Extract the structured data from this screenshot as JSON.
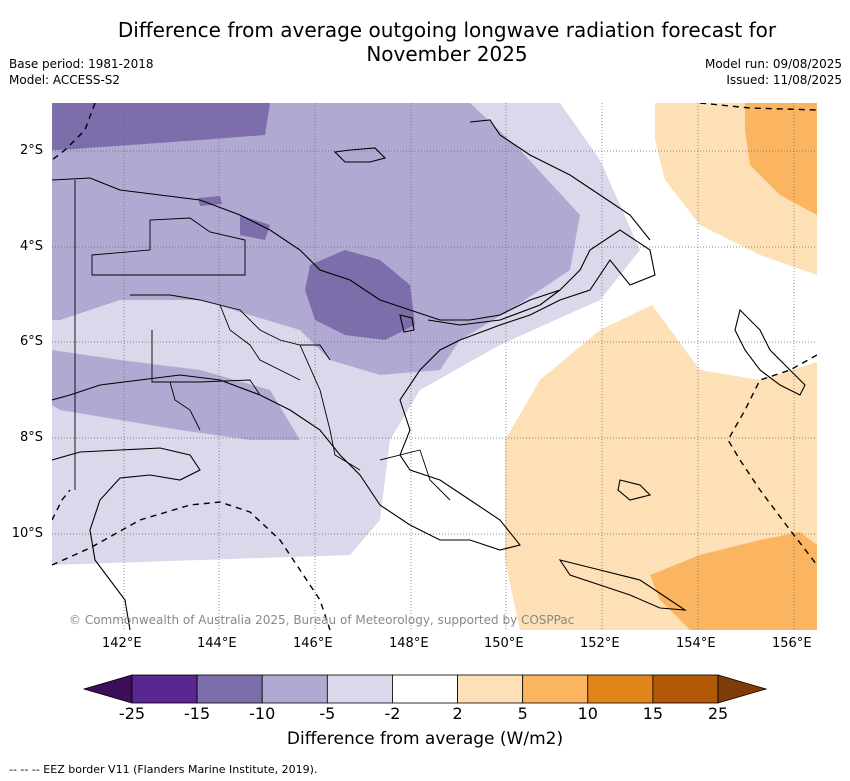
{
  "title": {
    "line1": "Difference from average outgoing longwave radiation forecast for",
    "line2": "November 2025"
  },
  "meta": {
    "base_period": "Base period: 1981-2018",
    "model": "Model: ACCESS-S2",
    "model_run": "Model run: 09/08/2025",
    "issued": "Issued: 11/08/2025"
  },
  "map": {
    "lat_labels": [
      "2°S",
      "4°S",
      "6°S",
      "8°S",
      "10°S"
    ],
    "lon_labels": [
      "142°E",
      "144°E",
      "146°E",
      "148°E",
      "150°E",
      "152°E",
      "154°E",
      "156°E"
    ],
    "copyright": "© Commonwealth of Australia 2025, Bureau of Meteorology, supported by COSPPac"
  },
  "colorbar": {
    "ticks": [
      "-25",
      "-15",
      "-10",
      "-5",
      "-2",
      "2",
      "5",
      "10",
      "15",
      "25"
    ],
    "colors": [
      "#3b0f5a",
      "#5a2690",
      "#7d6eab",
      "#b0a9d2",
      "#d9d9eb",
      "#ffffff",
      "#fde0b5",
      "#fbb561",
      "#e1841a",
      "#b35806",
      "#7f3b08"
    ],
    "label": "Difference from average (W/m2)"
  },
  "legend": {
    "eez": "--  --  -- EEZ border V11 (Flanders Marine Institute, 2019)."
  }
}
